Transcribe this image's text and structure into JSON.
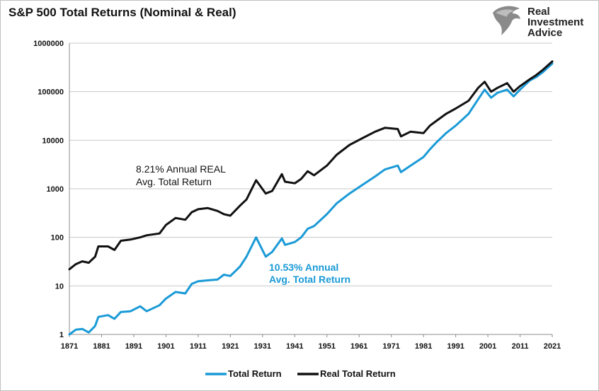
{
  "chart_data": {
    "type": "line",
    "title": "S&P 500 Total Returns (Nominal & Real)",
    "xlabel": "",
    "ylabel": "",
    "scale_y": "log",
    "xlim": [
      1871,
      2021
    ],
    "ylim": [
      1,
      1000000
    ],
    "grid": "horizontal",
    "legend_position": "bottom",
    "x_ticks": [
      "1871",
      "1881",
      "1891",
      "1901",
      "1911",
      "1921",
      "1931",
      "1941",
      "1951",
      "1961",
      "1971",
      "1981",
      "1991",
      "2001",
      "2011",
      "2021"
    ],
    "y_ticks": [
      "1",
      "10",
      "100",
      "1000",
      "10000",
      "100000",
      "1000000"
    ],
    "series": [
      {
        "name": "Total Return",
        "color": "#1a9ad6",
        "points": [
          [
            1871,
            1.0
          ],
          [
            1873,
            1.25
          ],
          [
            1875,
            1.3
          ],
          [
            1877,
            1.1
          ],
          [
            1879,
            1.5
          ],
          [
            1880,
            2.3
          ],
          [
            1883,
            2.5
          ],
          [
            1885,
            2.1
          ],
          [
            1887,
            2.9
          ],
          [
            1890,
            3.0
          ],
          [
            1893,
            3.8
          ],
          [
            1895,
            3.0
          ],
          [
            1899,
            4.0
          ],
          [
            1901,
            5.5
          ],
          [
            1904,
            7.5
          ],
          [
            1907,
            7.0
          ],
          [
            1909,
            11.0
          ],
          [
            1911,
            12.5
          ],
          [
            1914,
            13.0
          ],
          [
            1917,
            13.5
          ],
          [
            1919,
            17.0
          ],
          [
            1921,
            16.0
          ],
          [
            1924,
            25.0
          ],
          [
            1926,
            40.0
          ],
          [
            1929,
            100.0
          ],
          [
            1932,
            40.0
          ],
          [
            1934,
            50.0
          ],
          [
            1937,
            95.0
          ],
          [
            1938,
            70.0
          ],
          [
            1941,
            80.0
          ],
          [
            1943,
            100.0
          ],
          [
            1945,
            150.0
          ],
          [
            1947,
            170.0
          ],
          [
            1951,
            300.0
          ],
          [
            1954,
            500.0
          ],
          [
            1958,
            800.0
          ],
          [
            1962,
            1200.0
          ],
          [
            1966,
            1800.0
          ],
          [
            1969,
            2500.0
          ],
          [
            1973,
            3000.0
          ],
          [
            1974,
            2200.0
          ],
          [
            1977,
            3000.0
          ],
          [
            1981,
            4500.0
          ],
          [
            1983,
            6500.0
          ],
          [
            1985,
            9000.0
          ],
          [
            1988,
            14000.0
          ],
          [
            1991,
            20000.0
          ],
          [
            1995,
            35000.0
          ],
          [
            1998,
            70000.0
          ],
          [
            2000,
            110000.0
          ],
          [
            2002,
            75000.0
          ],
          [
            2004,
            95000.0
          ],
          [
            2007,
            110000.0
          ],
          [
            2009,
            80000.0
          ],
          [
            2011,
            110000.0
          ],
          [
            2014,
            170000.0
          ],
          [
            2016,
            200000.0
          ],
          [
            2018,
            250000.0
          ],
          [
            2021,
            380000.0
          ]
        ]
      },
      {
        "name": "Real Total Return",
        "color": "#111111",
        "points": [
          [
            1871,
            22.0
          ],
          [
            1873,
            28.0
          ],
          [
            1875,
            32.0
          ],
          [
            1877,
            30.0
          ],
          [
            1879,
            40.0
          ],
          [
            1880,
            65.0
          ],
          [
            1883,
            65.0
          ],
          [
            1885,
            55.0
          ],
          [
            1887,
            85.0
          ],
          [
            1890,
            90.0
          ],
          [
            1893,
            100.0
          ],
          [
            1895,
            110.0
          ],
          [
            1899,
            120.0
          ],
          [
            1901,
            180.0
          ],
          [
            1904,
            250.0
          ],
          [
            1907,
            230.0
          ],
          [
            1909,
            330.0
          ],
          [
            1911,
            380.0
          ],
          [
            1914,
            400.0
          ],
          [
            1917,
            350.0
          ],
          [
            1919,
            300.0
          ],
          [
            1921,
            280.0
          ],
          [
            1924,
            450.0
          ],
          [
            1926,
            600.0
          ],
          [
            1929,
            1500.0
          ],
          [
            1932,
            800.0
          ],
          [
            1934,
            900.0
          ],
          [
            1937,
            2000.0
          ],
          [
            1938,
            1400.0
          ],
          [
            1941,
            1300.0
          ],
          [
            1943,
            1600.0
          ],
          [
            1945,
            2300.0
          ],
          [
            1947,
            1900.0
          ],
          [
            1951,
            3000.0
          ],
          [
            1954,
            5000.0
          ],
          [
            1958,
            8000.0
          ],
          [
            1962,
            11000.0
          ],
          [
            1966,
            15000.0
          ],
          [
            1969,
            18000.0
          ],
          [
            1973,
            17000.0
          ],
          [
            1974,
            12000.0
          ],
          [
            1977,
            15000.0
          ],
          [
            1981,
            14000.0
          ],
          [
            1983,
            20000.0
          ],
          [
            1985,
            25000.0
          ],
          [
            1988,
            35000.0
          ],
          [
            1991,
            45000.0
          ],
          [
            1995,
            65000.0
          ],
          [
            1998,
            120000.0
          ],
          [
            2000,
            160000.0
          ],
          [
            2002,
            100000.0
          ],
          [
            2004,
            120000.0
          ],
          [
            2007,
            150000.0
          ],
          [
            2009,
            100000.0
          ],
          [
            2011,
            130000.0
          ],
          [
            2014,
            180000.0
          ],
          [
            2016,
            220000.0
          ],
          [
            2018,
            280000.0
          ],
          [
            2021,
            420000.0
          ]
        ]
      }
    ],
    "annotations": [
      {
        "line1": "8.21% Annual REAL",
        "line2": "Avg. Total Return",
        "color": "#111111"
      },
      {
        "line1": "10.53% Annual",
        "line2": "Avg. Total Return",
        "color": "#1a9ad6"
      }
    ]
  },
  "brand": {
    "logo_icon": "eagle-head-icon",
    "line1": "Real",
    "line2": "Investment",
    "line3": "Advice"
  }
}
